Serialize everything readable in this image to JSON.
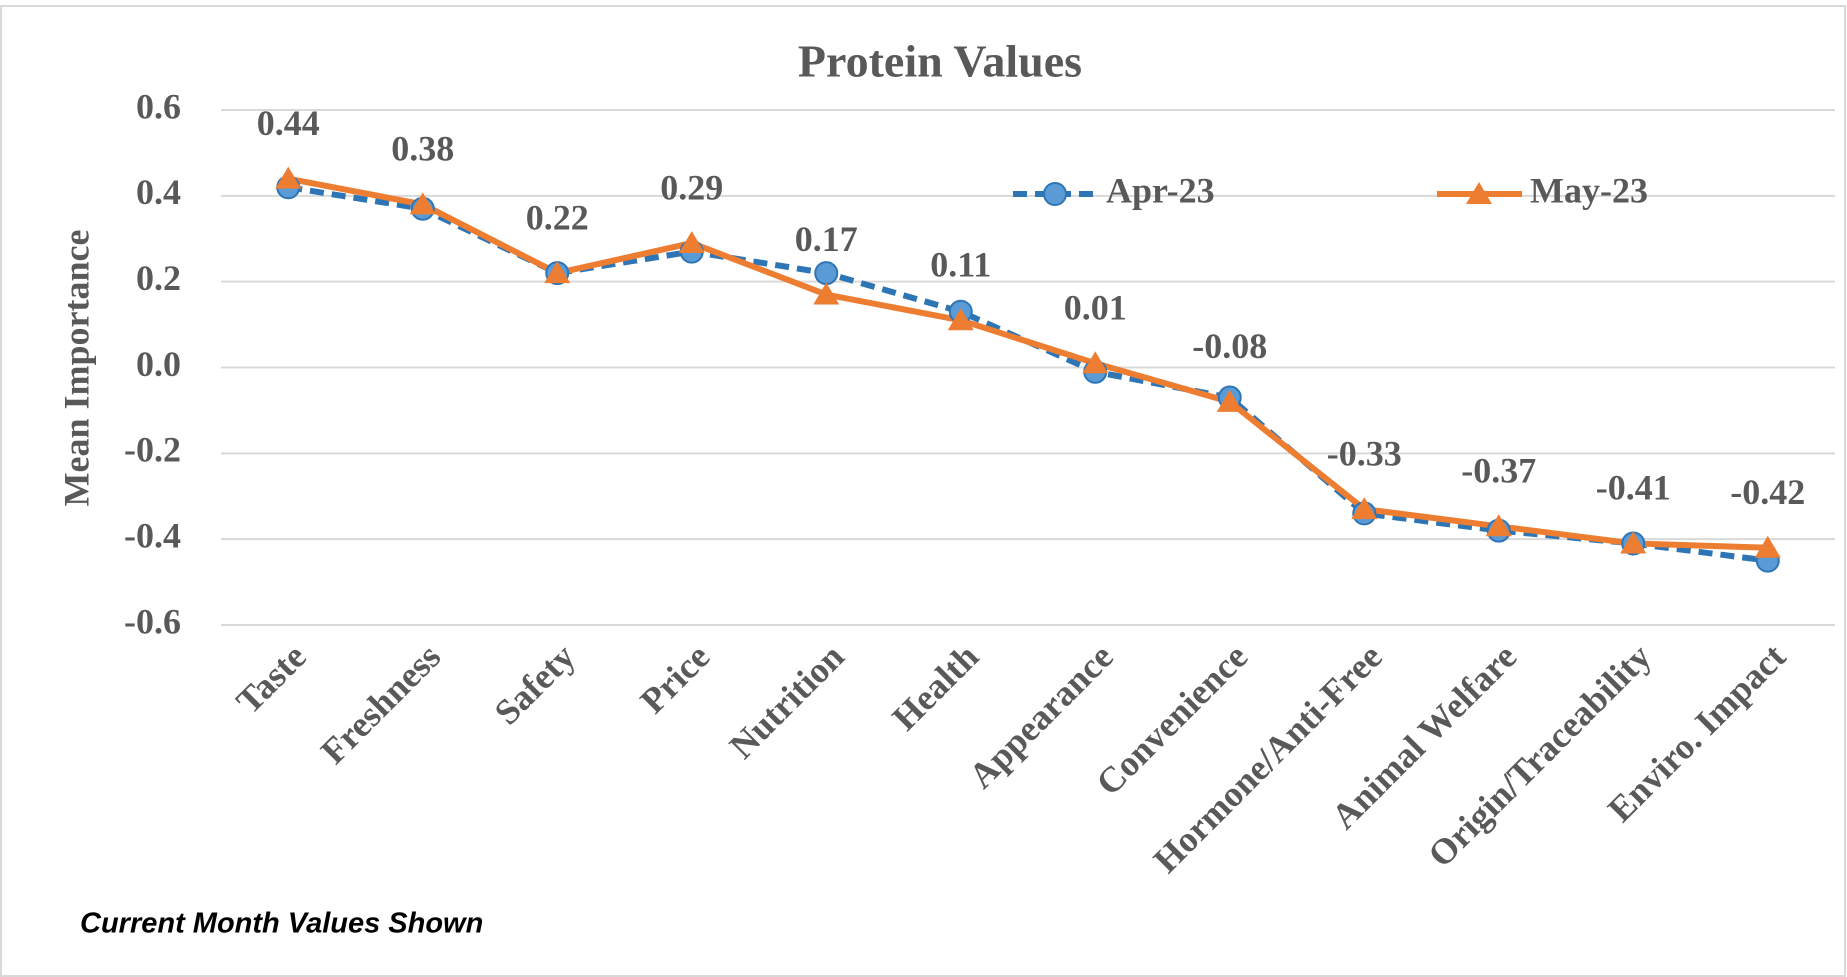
{
  "chart_data": {
    "type": "line",
    "title": "Protein Values",
    "ylabel": "Mean Importance",
    "note": "Current Month Values Shown",
    "categories": [
      "Taste",
      "Freshness",
      "Safety",
      "Price",
      "Nutrition",
      "Health",
      "Appearance",
      "Convenience",
      "Hormone/Anti-Free",
      "Animal Welfare",
      "Origin/Traceability",
      "Enviro. Impact"
    ],
    "series": [
      {
        "name": "Apr-23",
        "color": "#2e75b6",
        "marker": "circle",
        "dashed": true,
        "values": [
          0.42,
          0.37,
          0.22,
          0.27,
          0.22,
          0.13,
          -0.01,
          -0.07,
          -0.34,
          -0.38,
          -0.41,
          -0.45
        ]
      },
      {
        "name": "May-23",
        "color": "#ed7d31",
        "marker": "triangle",
        "dashed": false,
        "data_labels": true,
        "values": [
          0.44,
          0.38,
          0.22,
          0.29,
          0.17,
          0.11,
          0.01,
          -0.08,
          -0.33,
          -0.37,
          -0.41,
          -0.42
        ]
      }
    ],
    "ylim": [
      -0.6,
      0.6
    ],
    "yticks": [
      -0.6,
      -0.4,
      -0.2,
      {
        "value": 0,
        "label": "0.0"
      },
      0.2,
      0.4,
      0.6
    ],
    "grid": true,
    "legend": "top-right"
  }
}
